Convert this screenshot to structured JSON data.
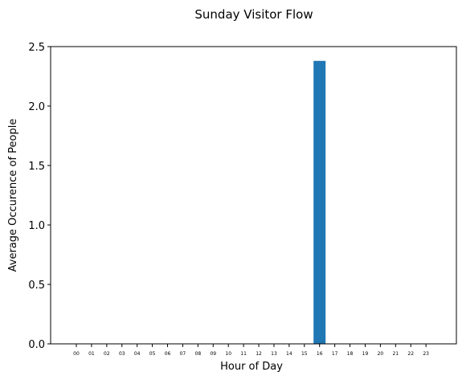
{
  "chart_data": {
    "type": "bar",
    "title": "Sunday Visitor Flow",
    "xlabel": "Hour of Day",
    "ylabel": "Average Occurence of People",
    "categories": [
      "00",
      "01",
      "02",
      "03",
      "04",
      "05",
      "06",
      "07",
      "08",
      "09",
      "10",
      "11",
      "12",
      "13",
      "14",
      "15",
      "16",
      "17",
      "18",
      "19",
      "20",
      "21",
      "22",
      "23"
    ],
    "values": [
      0,
      0,
      0,
      0,
      0,
      0,
      0,
      0,
      0,
      0,
      0,
      0,
      0,
      0,
      0,
      0,
      2.38,
      0,
      0,
      0,
      0,
      0,
      0,
      0
    ],
    "ylim": [
      0,
      2.5
    ],
    "yticks": [
      "0.0",
      "0.5",
      "1.0",
      "1.5",
      "2.0",
      "2.5"
    ],
    "grid": false,
    "bar_color": "#1f77b4"
  }
}
